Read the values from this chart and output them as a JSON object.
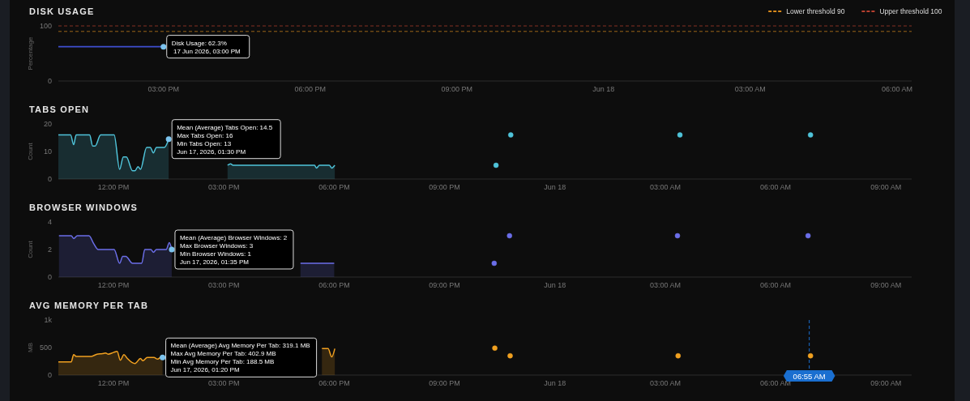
{
  "chart_data": [
    {
      "type": "line",
      "title": "DISK USAGE",
      "ylabel": "Percentage",
      "xlim": [
        "2026-06-17T12:51",
        "2026-06-18T06:18"
      ],
      "ylim": [
        0,
        100
      ],
      "yticks": [
        0,
        100
      ],
      "xticks": [
        {
          "value": "2026-06-17T15:00",
          "label": "03:00 PM"
        },
        {
          "value": "2026-06-17T18:00",
          "label": "06:00 PM"
        },
        {
          "value": "2026-06-17T21:00",
          "label": "09:00 PM"
        },
        {
          "value": "2026-06-18",
          "label": "Jun 18"
        },
        {
          "value": "2026-06-18T03:00",
          "label": "03:00 AM"
        },
        {
          "value": "2026-06-18T06:00",
          "label": "06:00 AM"
        }
      ],
      "series": [
        {
          "color": "#3f4fd0",
          "x": [
            "2026-06-17T12:51",
            "2026-06-17T15:00"
          ],
          "values": [
            62.3,
            62.3
          ]
        }
      ],
      "ref_lines": [
        {
          "axis": "y",
          "value": 90,
          "label": "Lower threshold 90",
          "color": "#d98a1c",
          "line_style": "dashed"
        },
        {
          "axis": "y",
          "value": 100,
          "label": "Upper threshold 100",
          "color": "#b8402f",
          "line_style": "dashed"
        }
      ],
      "legend": "top right",
      "annotations": [
        {
          "text": "Disk Usage: 62.3%\n 17 Jun 2026, 03:00 PM",
          "x": "2026-06-17T15:00",
          "y": 62.3
        }
      ]
    },
    {
      "type": "area",
      "title": "TABS OPEN",
      "ylabel": "Count",
      "xlim": [
        "2026-06-17T10:30",
        "2026-06-18T09:42"
      ],
      "ylim": [
        0,
        20
      ],
      "yticks": [
        0,
        10,
        20
      ],
      "xticks": [
        {
          "value": "2026-06-17T12:00",
          "label": "12:00 PM"
        },
        {
          "value": "2026-06-17T15:00",
          "label": "03:00 PM"
        },
        {
          "value": "2026-06-17T18:00",
          "label": "06:00 PM"
        },
        {
          "value": "2026-06-17T21:00",
          "label": "09:00 PM"
        },
        {
          "value": "2026-06-18",
          "label": "Jun 18"
        },
        {
          "value": "2026-06-18T03:00",
          "label": "03:00 AM"
        },
        {
          "value": "2026-06-18T06:00",
          "label": "06:00 AM"
        },
        {
          "value": "2026-06-18T09:00",
          "label": "09:00 AM"
        }
      ],
      "series": [
        {
          "color": "#4fc3d9",
          "x": [
            "2026-06-17T10:30",
            "2026-06-17T10:50",
            "2026-06-17T10:55",
            "2026-06-17T10:59",
            "2026-06-17T11:21",
            "2026-06-17T11:26",
            "2026-06-17T11:30",
            "2026-06-17T11:39",
            "2026-06-17T12:01",
            "2026-06-17T12:10",
            "2026-06-17T12:16",
            "2026-06-17T12:21",
            "2026-06-17T12:31",
            "2026-06-17T12:35",
            "2026-06-17T12:40",
            "2026-06-17T12:44",
            "2026-06-17T12:54",
            "2026-06-17T13:00",
            "2026-06-17T13:05",
            "2026-06-17T13:10",
            "2026-06-17T13:23",
            "2026-06-17T13:30",
            "2026-06-17T14:18",
            "2026-06-17T15:06",
            "2026-06-17T15:11",
            "2026-06-17T15:15",
            "2026-06-17T17:28",
            "2026-06-17T17:31",
            "2026-06-17T17:36",
            "2026-06-17T17:52",
            "2026-06-17T17:56",
            "2026-06-17T18:01"
          ],
          "values": [
            16,
            16,
            12.5,
            16,
            16,
            12,
            12,
            16,
            16,
            3.5,
            8,
            8,
            3,
            3,
            4.5,
            3.5,
            11.5,
            11.5,
            9.5,
            11.5,
            11.5,
            14.5,
            null,
            5,
            5.5,
            5,
            5,
            4,
            5,
            5,
            4,
            5
          ]
        },
        {
          "type": "scatter",
          "color": "#4fc3d9",
          "marker": "circle",
          "x": [
            "2026-06-17T22:24",
            "2026-06-17T22:48",
            "2026-06-18T03:24",
            "2026-06-18T06:57"
          ],
          "values": [
            5,
            16,
            16,
            16
          ]
        }
      ],
      "annotations": [
        {
          "text": "Mean (Average) Tabs Open: 14.5\nMax Tabs Open: 16\nMin Tabs Open: 13\nJun 17, 2026, 01:30 PM",
          "x": "2026-06-17T13:30",
          "y": 14.5
        }
      ]
    },
    {
      "type": "area",
      "title": "BROWSER WINDOWS",
      "ylabel": "Count",
      "xlim": [
        "2026-06-17T10:30",
        "2026-06-18T09:42"
      ],
      "ylim": [
        0,
        4
      ],
      "yticks": [
        0,
        2,
        4
      ],
      "xticks": [
        {
          "value": "2026-06-17T12:00",
          "label": "12:00 PM"
        },
        {
          "value": "2026-06-17T15:00",
          "label": "03:00 PM"
        },
        {
          "value": "2026-06-17T18:00",
          "label": "06:00 PM"
        },
        {
          "value": "2026-06-17T21:00",
          "label": "09:00 PM"
        },
        {
          "value": "2026-06-18",
          "label": "Jun 18"
        },
        {
          "value": "2026-06-18T03:00",
          "label": "03:00 AM"
        },
        {
          "value": "2026-06-18T06:00",
          "label": "06:00 AM"
        },
        {
          "value": "2026-06-18T09:00",
          "label": "09:00 AM"
        }
      ],
      "series": [
        {
          "color": "#6b6ee8",
          "x": [
            "2026-06-17T10:31",
            "2026-06-17T10:51",
            "2026-06-17T10:55",
            "2026-06-17T11:01",
            "2026-06-17T11:20",
            "2026-06-17T11:28",
            "2026-06-17T11:35",
            "2026-06-17T12:01",
            "2026-06-17T12:10",
            "2026-06-17T12:15",
            "2026-06-17T12:20",
            "2026-06-17T12:31",
            "2026-06-17T12:46",
            "2026-06-17T12:51",
            "2026-06-17T13:01",
            "2026-06-17T13:05",
            "2026-06-17T13:10",
            "2026-06-17T13:26",
            "2026-06-17T13:31",
            "2026-06-17T13:35",
            "2026-06-17T15:00",
            "2026-06-17T17:05",
            "2026-06-17T18:00"
          ],
          "values": [
            3,
            3,
            2.8,
            3,
            3,
            2.4,
            2,
            2,
            1,
            1.5,
            1.5,
            1,
            1,
            2,
            2,
            1.8,
            2,
            2,
            2.5,
            2,
            null,
            1,
            1
          ]
        },
        {
          "type": "scatter",
          "color": "#6b6ee8",
          "marker": "circle",
          "x": [
            "2026-06-17T22:21",
            "2026-06-17T22:46",
            "2026-06-18T03:20",
            "2026-06-18T06:53"
          ],
          "values": [
            1,
            3,
            3,
            3
          ]
        }
      ],
      "annotations": [
        {
          "text": "Mean (Average) Browser Windows: 2\nMax Browser Windows: 3\nMin Browser Windows: 1\nJun 17, 2026, 01:35 PM",
          "x": "2026-06-17T13:35",
          "y": 2
        }
      ]
    },
    {
      "type": "area",
      "title": "AVG MEMORY PER TAB",
      "ylabel": "MB",
      "xlim": [
        "2026-06-17T10:30",
        "2026-06-18T09:42"
      ],
      "ylim": [
        0,
        1000
      ],
      "yticks": [
        0,
        500,
        {
          "value": 1000,
          "label": "1k"
        }
      ],
      "xticks": [
        {
          "value": "2026-06-17T12:00",
          "label": "12:00 PM"
        },
        {
          "value": "2026-06-17T15:00",
          "label": "03:00 PM"
        },
        {
          "value": "2026-06-17T18:00",
          "label": "06:00 PM"
        },
        {
          "value": "2026-06-17T21:00",
          "label": "09:00 PM"
        },
        {
          "value": "2026-06-18",
          "label": "Jun 18"
        },
        {
          "value": "2026-06-18T03:00",
          "label": "03:00 AM"
        },
        {
          "value": "2026-06-18T06:00",
          "label": "06:00 AM"
        },
        {
          "value": "2026-06-18T09:00",
          "label": "09:00 AM"
        }
      ],
      "series": [
        {
          "color": "#f0a020",
          "x": [
            "2026-06-17T10:30",
            "2026-06-17T10:51",
            "2026-06-17T10:55",
            "2026-06-17T10:59",
            "2026-06-17T11:24",
            "2026-06-17T11:33",
            "2026-06-17T11:42",
            "2026-06-17T11:47",
            "2026-06-17T11:51",
            "2026-06-17T12:00",
            "2026-06-17T12:06",
            "2026-06-17T12:11",
            "2026-06-17T12:17",
            "2026-06-17T12:22",
            "2026-06-17T12:30",
            "2026-06-17T12:35",
            "2026-06-17T12:44",
            "2026-06-17T12:48",
            "2026-06-17T12:55",
            "2026-06-17T13:06",
            "2026-06-17T13:12",
            "2026-06-17T13:18",
            "2026-06-17T13:20",
            "2026-06-17T15:00",
            "2026-06-17T17:40",
            "2026-06-17T17:50",
            "2026-06-17T17:56",
            "2026-06-17T18:01"
          ],
          "values": [
            240,
            240,
            370,
            340,
            340,
            380,
            390,
            400,
            380,
            410,
            430,
            270,
            370,
            310,
            230,
            210,
            300,
            260,
            320,
            320,
            290,
            330,
            319.1,
            null,
            480,
            480,
            330,
            480
          ]
        },
        {
          "type": "scatter",
          "color": "#f0a020",
          "marker": "circle",
          "x": [
            "2026-06-17T22:22",
            "2026-06-17T22:47",
            "2026-06-18T03:21",
            "2026-06-18T06:57"
          ],
          "values": [
            490,
            350,
            350,
            350
          ]
        }
      ],
      "ref_lines": [
        {
          "axis": "x",
          "value": "2026-06-18T06:55",
          "label": "06:55 AM",
          "color": "#1a6fd0",
          "line_style": "dashed"
        }
      ],
      "annotations": [
        {
          "text": "Mean (Average) Avg Memory Per Tab: 319.1 MB\nMax Avg Memory Per Tab: 402.9 MB\nMin Avg Memory Per Tab: 188.5 MB\nJun 17, 2026, 01:20 PM",
          "x": "2026-06-17T13:20",
          "y": 319.1
        }
      ]
    }
  ]
}
